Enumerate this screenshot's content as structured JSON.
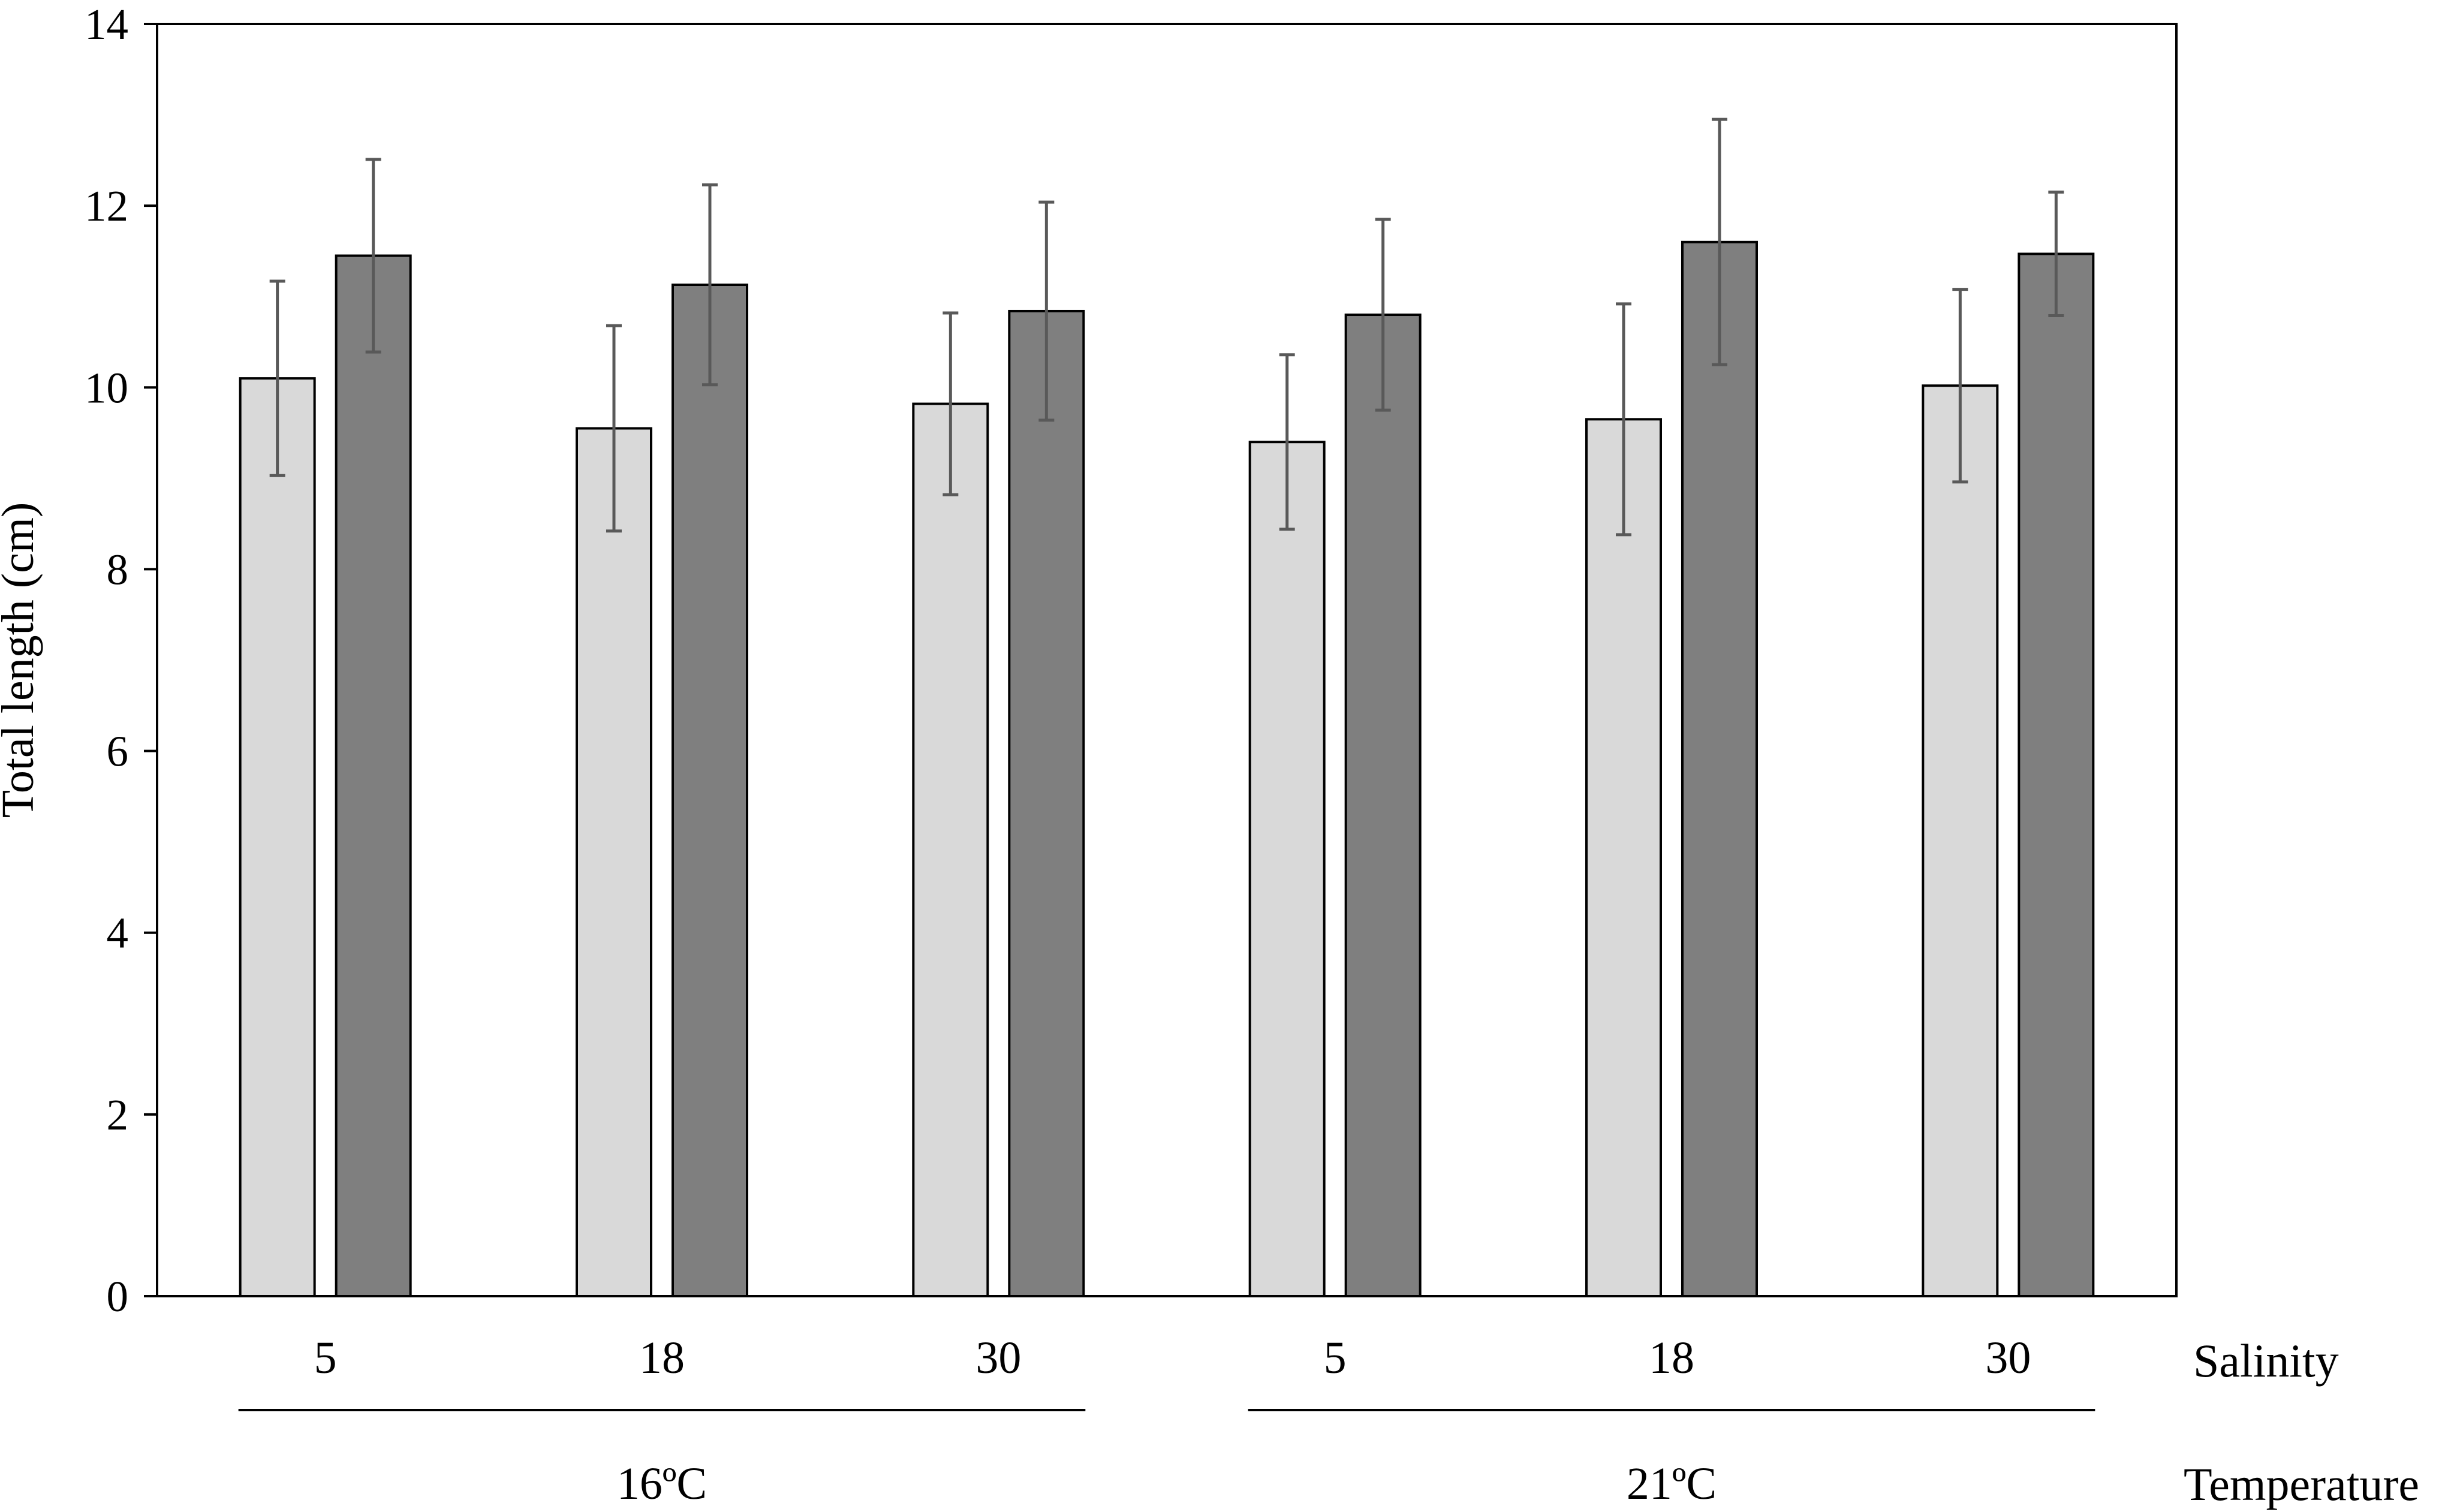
{
  "chart_data": {
    "type": "bar",
    "title": "",
    "ylabel": "Total length (cm)",
    "ylim": [
      0,
      14
    ],
    "yticks": [
      0,
      2,
      4,
      6,
      8,
      10,
      12,
      14
    ],
    "grid": false,
    "legend": "none",
    "categories": [
      "5",
      "18",
      "30",
      "5",
      "18",
      "30"
    ],
    "category_row_label": "Salinity",
    "groups": [
      {
        "label": "16ºC",
        "categories": [
          0,
          1,
          2
        ]
      },
      {
        "label": "21ºC",
        "categories": [
          3,
          4,
          5
        ]
      }
    ],
    "group_row_label": "Temperature",
    "series": [
      {
        "color": "#d9d9d9",
        "values": [
          10.1,
          9.55,
          9.82,
          9.4,
          9.65,
          10.02
        ],
        "errors": [
          1.07,
          1.13,
          1.0,
          0.96,
          1.27,
          1.06
        ]
      },
      {
        "color": "#7f7f7f",
        "values": [
          11.45,
          11.13,
          10.84,
          10.8,
          11.6,
          11.47
        ],
        "errors": [
          1.06,
          1.1,
          1.2,
          1.05,
          1.35,
          0.68
        ]
      }
    ],
    "error_bar_color": "#595959"
  }
}
